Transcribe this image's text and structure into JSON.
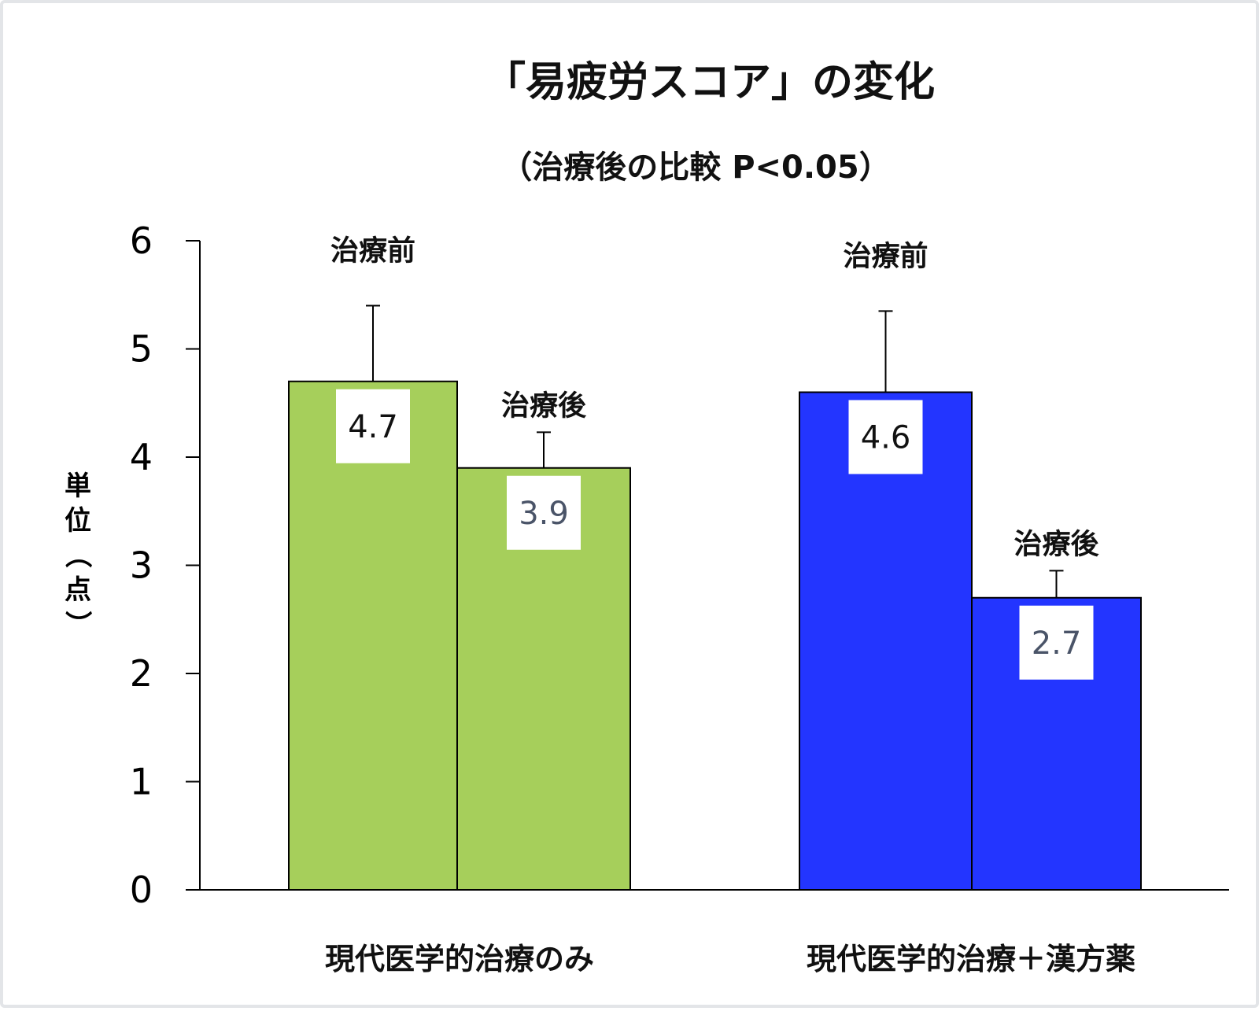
{
  "chart_data": {
    "type": "bar",
    "title": "「易疲労スコア」の変化",
    "subtitle": "（治療後の比較 P<0.05）",
    "ylabel": "単位（点）",
    "ylim": [
      0,
      6
    ],
    "yticks": [
      "0",
      "1",
      "2",
      "3",
      "4",
      "5",
      "6"
    ],
    "categories": [
      "現代医学的治療のみ",
      "現代医学的治療＋漢方薬"
    ],
    "groups": [
      {
        "category": "現代医学的治療のみ",
        "color": "#a6cf5b",
        "bars": [
          {
            "label": "治療前",
            "value": 4.7,
            "value_label": "4.7",
            "error_high": 5.4,
            "value_color": "#111111"
          },
          {
            "label": "治療後",
            "value": 3.9,
            "value_label": "3.9",
            "error_high": 4.23,
            "value_color": "#4a5468"
          }
        ]
      },
      {
        "category": "現代医学的治療＋漢方薬",
        "color": "#2335ff",
        "bars": [
          {
            "label": "治療前",
            "value": 4.6,
            "value_label": "4.6",
            "error_high": 5.35,
            "value_color": "#111111"
          },
          {
            "label": "治療後",
            "value": 2.7,
            "value_label": "2.7",
            "error_high": 2.95,
            "value_color": "#4a5468"
          }
        ]
      }
    ],
    "grid": false,
    "legend": "none"
  }
}
